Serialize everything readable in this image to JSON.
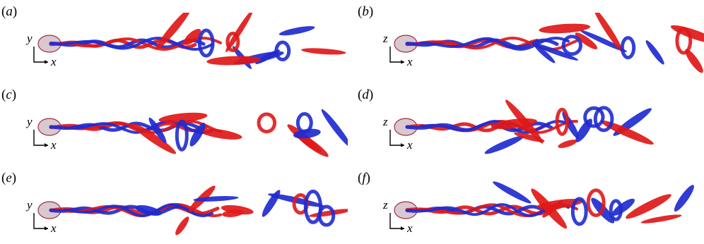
{
  "figure": {
    "panels": [
      {
        "open": "(",
        "letter": "a",
        "close": ")",
        "vertical_axis": "y",
        "horizontal_axis": "x"
      },
      {
        "open": "(",
        "letter": "b",
        "close": ")",
        "vertical_axis": "z",
        "horizontal_axis": "x"
      },
      {
        "open": "(",
        "letter": "c",
        "close": ")",
        "vertical_axis": "y",
        "horizontal_axis": "x"
      },
      {
        "open": "(",
        "letter": "d",
        "close": ")",
        "vertical_axis": "z",
        "horizontal_axis": "x"
      },
      {
        "open": "(",
        "letter": "e",
        "close": ")",
        "vertical_axis": "y",
        "horizontal_axis": "x"
      },
      {
        "open": "(",
        "letter": "f",
        "close": ")",
        "vertical_axis": "z",
        "horizontal_axis": "x"
      }
    ],
    "colors": {
      "positive_vorticity": "#e01818",
      "negative_vorticity": "#1f2bd0",
      "body": "#d8c8d0"
    }
  }
}
